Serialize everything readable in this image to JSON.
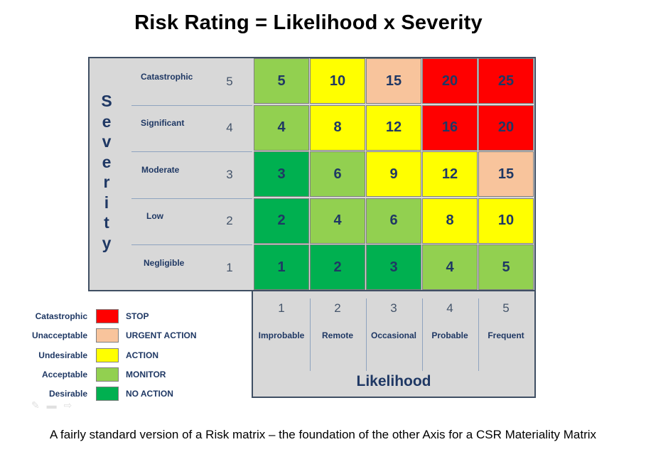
{
  "title": "Risk Rating = Likelihood x Severity",
  "severity_axis": {
    "label": "Severity",
    "rows": [
      {
        "label": "Catastrophic",
        "value": "5"
      },
      {
        "label": "Significant",
        "value": "4"
      },
      {
        "label": "Moderate",
        "value": "3"
      },
      {
        "label": "Low",
        "value": "2"
      },
      {
        "label": "Negligible",
        "value": "1"
      }
    ]
  },
  "likelihood_axis": {
    "label": "Likelihood",
    "columns": [
      {
        "label": "Improbable",
        "value": "1"
      },
      {
        "label": "Remote",
        "value": "2"
      },
      {
        "label": "Occasional",
        "value": "3"
      },
      {
        "label": "Probable",
        "value": "4"
      },
      {
        "label": "Frequent",
        "value": "5"
      }
    ]
  },
  "matrix": [
    [
      {
        "v": "5",
        "c": "acceptable"
      },
      {
        "v": "10",
        "c": "undesirable"
      },
      {
        "v": "15",
        "c": "unacceptable"
      },
      {
        "v": "20",
        "c": "catastrophic"
      },
      {
        "v": "25",
        "c": "catastrophic"
      }
    ],
    [
      {
        "v": "4",
        "c": "acceptable"
      },
      {
        "v": "8",
        "c": "undesirable"
      },
      {
        "v": "12",
        "c": "undesirable"
      },
      {
        "v": "16",
        "c": "catastrophic"
      },
      {
        "v": "20",
        "c": "catastrophic"
      }
    ],
    [
      {
        "v": "3",
        "c": "desirable"
      },
      {
        "v": "6",
        "c": "acceptable"
      },
      {
        "v": "9",
        "c": "undesirable"
      },
      {
        "v": "12",
        "c": "undesirable"
      },
      {
        "v": "15",
        "c": "unacceptable"
      }
    ],
    [
      {
        "v": "2",
        "c": "desirable"
      },
      {
        "v": "4",
        "c": "acceptable"
      },
      {
        "v": "6",
        "c": "acceptable"
      },
      {
        "v": "8",
        "c": "undesirable"
      },
      {
        "v": "10",
        "c": "undesirable"
      }
    ],
    [
      {
        "v": "1",
        "c": "desirable"
      },
      {
        "v": "2",
        "c": "desirable"
      },
      {
        "v": "3",
        "c": "desirable"
      },
      {
        "v": "4",
        "c": "acceptable"
      },
      {
        "v": "5",
        "c": "acceptable"
      }
    ]
  ],
  "legend": [
    {
      "key": "catastrophic",
      "name": "Catastrophic",
      "action": "STOP",
      "color": "#ff0000"
    },
    {
      "key": "unacceptable",
      "name": "Unacceptable",
      "action": "URGENT ACTION",
      "color": "#f8c49c"
    },
    {
      "key": "undesirable",
      "name": "Undesirable",
      "action": "ACTION",
      "color": "#ffff00"
    },
    {
      "key": "acceptable",
      "name": "Acceptable",
      "action": "MONITOR",
      "color": "#92d050"
    },
    {
      "key": "desirable",
      "name": "Desirable",
      "action": "NO ACTION",
      "color": "#00b050"
    }
  ],
  "caption": "A fairly standard version of a Risk matrix – the foundation of the other Axis for a CSR Materiality Matrix"
}
